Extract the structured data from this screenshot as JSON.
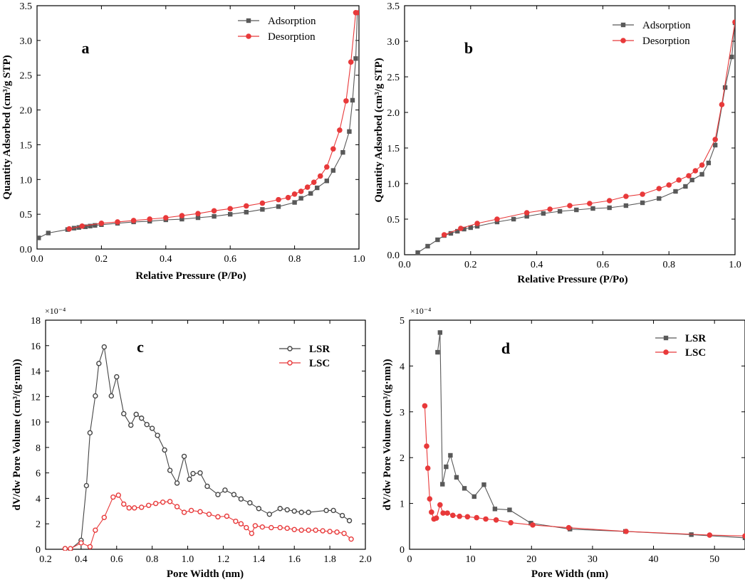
{
  "chart_data": [
    {
      "type": "line",
      "panel_label": "a",
      "title": "",
      "xlabel": "Relative Pressure (P/Po)",
      "ylabel": "Quantity Adsorbed (cm³/g STP)",
      "xlim": [
        0.0,
        1.0
      ],
      "ylim": [
        0.0,
        3.5
      ],
      "xticks": [
        0.0,
        0.2,
        0.4,
        0.6,
        0.8,
        1.0
      ],
      "xtick_labels": [
        "0.0",
        "0.2",
        "0.4",
        "0.6",
        "0.8",
        "1.0"
      ],
      "yticks": [
        0.0,
        0.5,
        1.0,
        1.5,
        2.0,
        2.5,
        3.0,
        3.5
      ],
      "ytick_labels": [
        "0.0",
        "0.5",
        "1.0",
        "1.5",
        "2.0",
        "2.5",
        "3.0",
        "3.5"
      ],
      "legend_position": "top-right",
      "series": [
        {
          "name": "Adsorption",
          "color": "#595959",
          "marker": "square",
          "x": [
            0.005,
            0.035,
            0.095,
            0.115,
            0.13,
            0.15,
            0.165,
            0.18,
            0.2,
            0.25,
            0.3,
            0.35,
            0.4,
            0.45,
            0.5,
            0.55,
            0.6,
            0.65,
            0.7,
            0.75,
            0.8,
            0.82,
            0.85,
            0.87,
            0.9,
            0.92,
            0.95,
            0.97,
            0.98,
            0.99,
            0.995
          ],
          "y": [
            0.16,
            0.23,
            0.28,
            0.3,
            0.31,
            0.32,
            0.33,
            0.34,
            0.35,
            0.37,
            0.39,
            0.4,
            0.42,
            0.43,
            0.45,
            0.47,
            0.5,
            0.53,
            0.57,
            0.61,
            0.67,
            0.73,
            0.8,
            0.88,
            0.98,
            1.13,
            1.39,
            1.69,
            2.14,
            2.74,
            3.4
          ]
        },
        {
          "name": "Desorption",
          "color": "#e8393a",
          "marker": "circle",
          "x": [
            0.1,
            0.14,
            0.2,
            0.25,
            0.3,
            0.35,
            0.4,
            0.45,
            0.5,
            0.55,
            0.6,
            0.65,
            0.7,
            0.75,
            0.78,
            0.8,
            0.82,
            0.84,
            0.86,
            0.88,
            0.9,
            0.92,
            0.94,
            0.96,
            0.975,
            0.99,
            1.0
          ],
          "y": [
            0.29,
            0.33,
            0.37,
            0.39,
            0.41,
            0.43,
            0.45,
            0.48,
            0.51,
            0.55,
            0.58,
            0.62,
            0.66,
            0.71,
            0.74,
            0.79,
            0.83,
            0.89,
            0.96,
            1.05,
            1.18,
            1.44,
            1.71,
            2.13,
            2.69,
            3.4,
            3.4
          ]
        }
      ]
    },
    {
      "type": "line",
      "panel_label": "b",
      "title": "",
      "xlabel": "Relative Pressure (P/Po)",
      "ylabel": "Quantity Adsorbed (cm³/g STP)",
      "xlim": [
        0.0,
        1.0
      ],
      "ylim": [
        0.0,
        3.5
      ],
      "xticks": [
        0.0,
        0.2,
        0.4,
        0.6,
        0.8,
        1.0
      ],
      "xtick_labels": [
        "0.0",
        "0.2",
        "0.4",
        "0.6",
        "0.8",
        "1.0"
      ],
      "yticks": [
        0.0,
        0.5,
        1.0,
        1.5,
        2.0,
        2.5,
        3.0,
        3.5
      ],
      "ytick_labels": [
        "0.0",
        "0.5",
        "1.0",
        "1.5",
        "2.0",
        "2.5",
        "3.0",
        "3.5"
      ],
      "legend_position": "top-right",
      "series": [
        {
          "name": "Adsorption",
          "color": "#595959",
          "marker": "square",
          "x": [
            0.04,
            0.07,
            0.1,
            0.12,
            0.14,
            0.16,
            0.18,
            0.2,
            0.22,
            0.28,
            0.33,
            0.37,
            0.42,
            0.47,
            0.52,
            0.57,
            0.62,
            0.67,
            0.72,
            0.77,
            0.82,
            0.85,
            0.87,
            0.9,
            0.92,
            0.94,
            0.97,
            0.99,
            1.0
          ],
          "y": [
            0.03,
            0.12,
            0.21,
            0.27,
            0.3,
            0.33,
            0.36,
            0.38,
            0.4,
            0.46,
            0.5,
            0.54,
            0.58,
            0.61,
            0.63,
            0.65,
            0.66,
            0.69,
            0.73,
            0.79,
            0.89,
            0.96,
            1.05,
            1.13,
            1.29,
            1.54,
            2.35,
            2.78,
            3.26
          ]
        },
        {
          "name": "Desorption",
          "color": "#e8393a",
          "marker": "circle",
          "x": [
            0.12,
            0.17,
            0.22,
            0.28,
            0.37,
            0.44,
            0.5,
            0.56,
            0.62,
            0.67,
            0.72,
            0.77,
            0.8,
            0.83,
            0.86,
            0.88,
            0.9,
            0.94,
            0.96,
            1.0
          ],
          "y": [
            0.28,
            0.37,
            0.44,
            0.5,
            0.59,
            0.64,
            0.69,
            0.72,
            0.76,
            0.82,
            0.85,
            0.93,
            0.98,
            1.05,
            1.11,
            1.18,
            1.26,
            1.62,
            2.11,
            3.27
          ]
        }
      ]
    },
    {
      "type": "line",
      "panel_label": "c",
      "title": "",
      "xlabel": "Pore Width (nm)",
      "ylabel": "dV/dw Pore Volume (cm³/(g·nm))",
      "multiplier": "×10⁻⁴",
      "xlim": [
        0.2,
        2.0
      ],
      "ylim": [
        0,
        18
      ],
      "xticks": [
        0.2,
        0.4,
        0.6,
        0.8,
        1.0,
        1.2,
        1.4,
        1.6,
        1.8,
        2.0
      ],
      "xtick_labels": [
        "0.2",
        "0.4",
        "0.6",
        "0.8",
        "1.0",
        "1.2",
        "1.4",
        "1.6",
        "1.8",
        "2.0"
      ],
      "yticks": [
        0,
        2,
        4,
        6,
        8,
        10,
        12,
        14,
        16,
        18
      ],
      "ytick_labels": [
        "0",
        "2",
        "4",
        "6",
        "8",
        "10",
        "12",
        "14",
        "16",
        "18"
      ],
      "legend_position": "top-right",
      "series": [
        {
          "name": "LSR",
          "color": "#444444",
          "marker": "circle-open",
          "x": [
            0.31,
            0.34,
            0.4,
            0.43,
            0.45,
            0.48,
            0.5,
            0.53,
            0.57,
            0.6,
            0.64,
            0.68,
            0.71,
            0.74,
            0.77,
            0.8,
            0.83,
            0.87,
            0.9,
            0.94,
            0.98,
            1.01,
            1.03,
            1.07,
            1.11,
            1.17,
            1.21,
            1.26,
            1.3,
            1.35,
            1.4,
            1.46,
            1.52,
            1.56,
            1.6,
            1.64,
            1.68,
            1.78,
            1.82,
            1.87,
            1.91
          ],
          "y": [
            0.05,
            0.0,
            0.7,
            5.0,
            9.15,
            12.05,
            14.6,
            15.9,
            12.05,
            13.55,
            10.65,
            9.75,
            10.6,
            10.3,
            9.8,
            9.5,
            8.95,
            7.8,
            6.2,
            5.2,
            7.3,
            5.5,
            5.95,
            6.0,
            4.95,
            4.3,
            4.65,
            4.3,
            3.95,
            3.65,
            3.2,
            2.75,
            3.2,
            3.1,
            3.0,
            2.9,
            2.9,
            3.05,
            3.05,
            2.65,
            2.25
          ]
        },
        {
          "name": "LSC",
          "color": "#e8393a",
          "marker": "circle-open",
          "x": [
            0.31,
            0.34,
            0.4,
            0.45,
            0.48,
            0.53,
            0.58,
            0.61,
            0.64,
            0.67,
            0.7,
            0.74,
            0.78,
            0.82,
            0.86,
            0.9,
            0.94,
            0.98,
            1.02,
            1.07,
            1.12,
            1.17,
            1.22,
            1.27,
            1.3,
            1.33,
            1.36,
            1.38,
            1.42,
            1.47,
            1.52,
            1.56,
            1.6,
            1.64,
            1.68,
            1.72,
            1.76,
            1.8,
            1.84,
            1.88,
            1.92
          ],
          "y": [
            0.05,
            0.05,
            0.5,
            0.2,
            1.5,
            2.5,
            4.1,
            4.25,
            3.55,
            3.25,
            3.25,
            3.3,
            3.45,
            3.6,
            3.7,
            3.75,
            3.35,
            2.9,
            3.05,
            2.95,
            2.75,
            2.55,
            2.6,
            2.2,
            2.0,
            1.7,
            1.25,
            1.85,
            1.75,
            1.7,
            1.7,
            1.65,
            1.55,
            1.5,
            1.5,
            1.5,
            1.45,
            1.4,
            1.35,
            1.25,
            0.8
          ]
        }
      ]
    },
    {
      "type": "line",
      "panel_label": "d",
      "title": "",
      "xlabel": "Pore Width (nm)",
      "ylabel": "dV/dw Pore Volume (cm³/(g·nm))",
      "multiplier": "×10⁻⁴",
      "xlim": [
        0,
        55
      ],
      "ylim": [
        0,
        5
      ],
      "xticks": [
        0,
        10,
        20,
        30,
        40,
        50
      ],
      "xtick_labels": [
        "0",
        "10",
        "20",
        "30",
        "40",
        "50"
      ],
      "yticks": [
        0,
        1,
        2,
        3,
        4,
        5
      ],
      "ytick_labels": [
        "0",
        "1",
        "2",
        "3",
        "4",
        "5"
      ],
      "legend_position": "top-right",
      "series": [
        {
          "name": "LSR",
          "color": "#595959",
          "marker": "square",
          "x": [
            4.6,
            5.0,
            5.4,
            6.0,
            6.7,
            7.7,
            9.0,
            10.6,
            12.2,
            14.0,
            16.4,
            19.9,
            26.3,
            35.4,
            46.2,
            55
          ],
          "y": [
            4.3,
            4.73,
            1.42,
            1.8,
            2.05,
            1.57,
            1.33,
            1.15,
            1.41,
            0.88,
            0.86,
            0.57,
            0.44,
            0.39,
            0.32,
            0.25
          ]
        },
        {
          "name": "LSC",
          "color": "#e8393a",
          "marker": "circle",
          "x": [
            2.5,
            2.8,
            3.0,
            3.3,
            3.6,
            4.0,
            4.4,
            5.0,
            5.5,
            6.2,
            7.1,
            8.2,
            9.5,
            11.0,
            12.5,
            14.2,
            16.6,
            20.2,
            26.1,
            35.5,
            49.2,
            55
          ],
          "y": [
            3.13,
            2.25,
            1.77,
            1.1,
            0.81,
            0.66,
            0.68,
            0.97,
            0.79,
            0.79,
            0.74,
            0.72,
            0.71,
            0.69,
            0.66,
            0.64,
            0.58,
            0.53,
            0.47,
            0.39,
            0.31,
            0.29
          ]
        }
      ]
    }
  ]
}
